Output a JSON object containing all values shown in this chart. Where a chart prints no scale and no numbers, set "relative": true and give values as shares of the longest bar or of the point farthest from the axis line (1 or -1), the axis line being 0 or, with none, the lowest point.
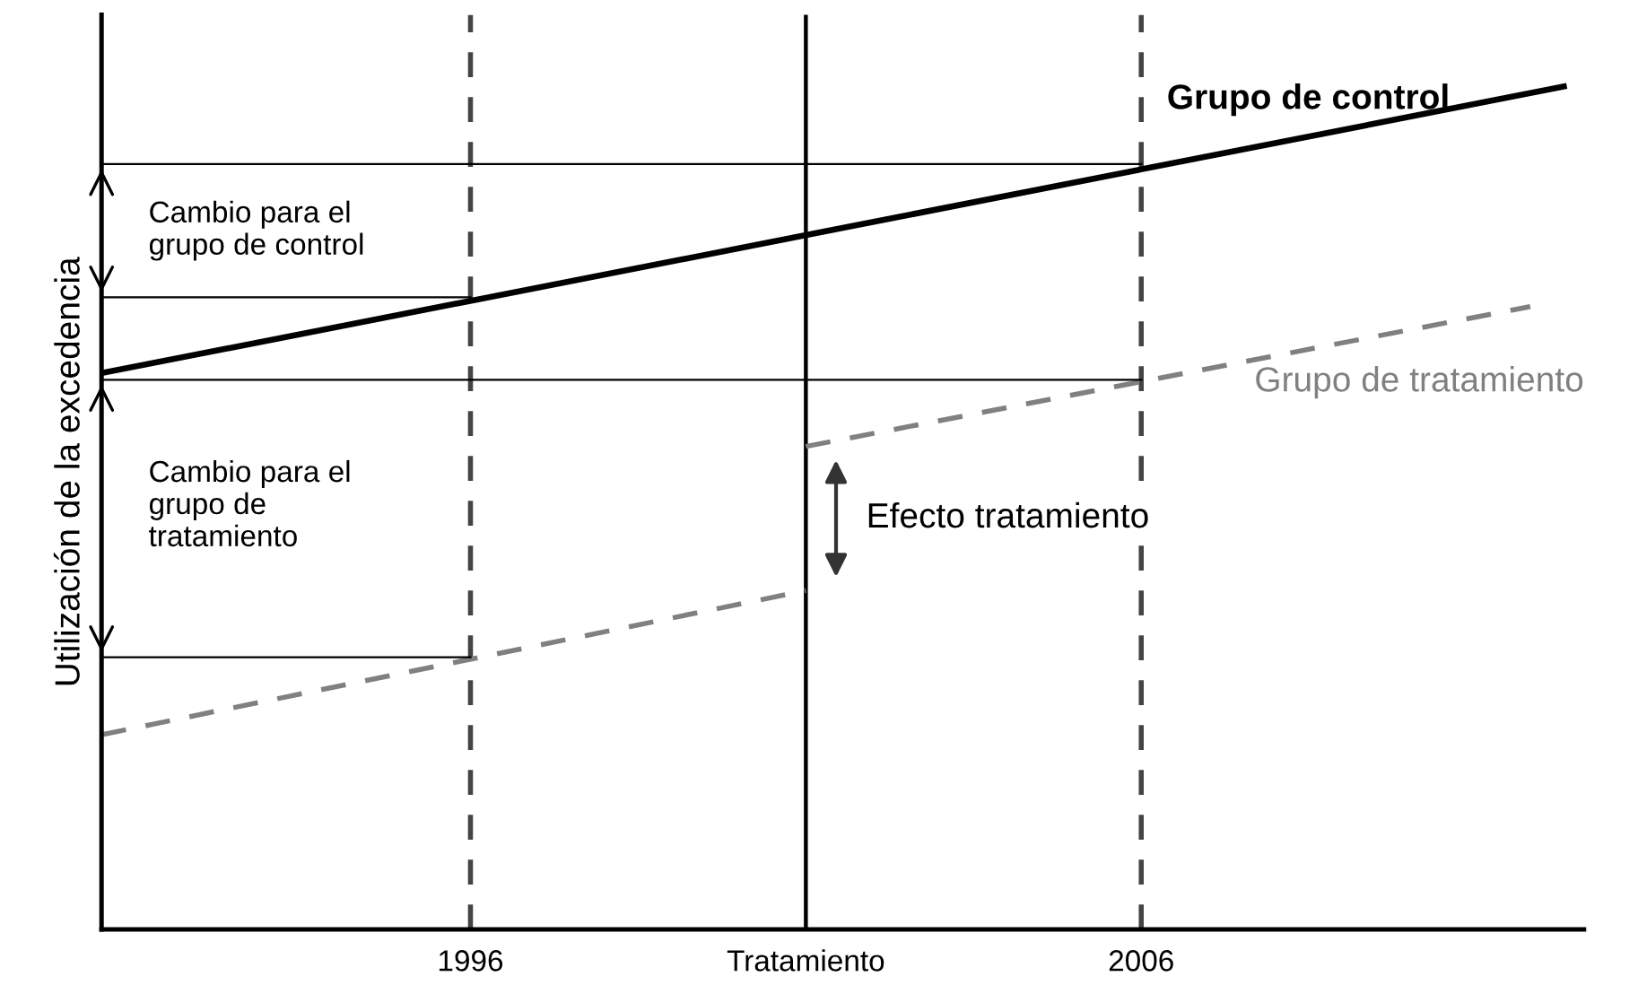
{
  "chart_data": {
    "type": "line",
    "relative": true,
    "ylabel": "Utilización de la excedencia",
    "xlim": [
      1990.5,
      2012.6
    ],
    "xticks": [
      1996,
      {
        "value": 2001,
        "label": "Tratamiento"
      },
      2006
    ],
    "tick_labels": "x",
    "grid": false,
    "legend": false,
    "marker": "none",
    "series": [
      {
        "name": "Grupo de control",
        "color": "#000000",
        "line_style": "solid",
        "x": [
          1990.5,
          2012.3
        ],
        "values": [
          0.66,
          1.0
        ]
      },
      {
        "color": "#808080",
        "line_style": "dashed",
        "x": [
          1990.5,
          2001
        ],
        "values": [
          0.231,
          0.402
        ]
      },
      {
        "name": "Grupo de tratamiento",
        "color": "#808080",
        "line_style": "dashed",
        "x": [
          2001,
          2011.8
        ],
        "values": [
          0.573,
          0.739
        ]
      },
      {
        "color": "#000000",
        "line_style": "solid",
        "x": [
          1990.5,
          2006
        ],
        "values": [
          0.908,
          0.908
        ]
      },
      {
        "color": "#000000",
        "line_style": "solid",
        "x": [
          1990.5,
          1996
        ],
        "values": [
          0.75,
          0.75
        ]
      },
      {
        "color": "#000000",
        "line_style": "solid",
        "x": [
          1990.5,
          2006
        ],
        "values": [
          0.652,
          0.652
        ]
      },
      {
        "color": "#000000",
        "line_style": "solid",
        "x": [
          1990.5,
          1996
        ],
        "values": [
          0.323,
          0.323
        ]
      }
    ],
    "ref_lines": [
      {
        "axis": "x",
        "value": 1996,
        "color": "#444444",
        "line_style": "dashed"
      },
      {
        "axis": "x",
        "value": 2001,
        "color": "#000000",
        "line_style": "solid"
      },
      {
        "axis": "x",
        "value": 2006,
        "color": "#444444",
        "line_style": "dashed"
      }
    ],
    "annotations": [
      "Cambio para el\ngrupo de control",
      "Cambio para el\ngrupo de\ntratamiento",
      "Efecto tratamiento"
    ]
  }
}
